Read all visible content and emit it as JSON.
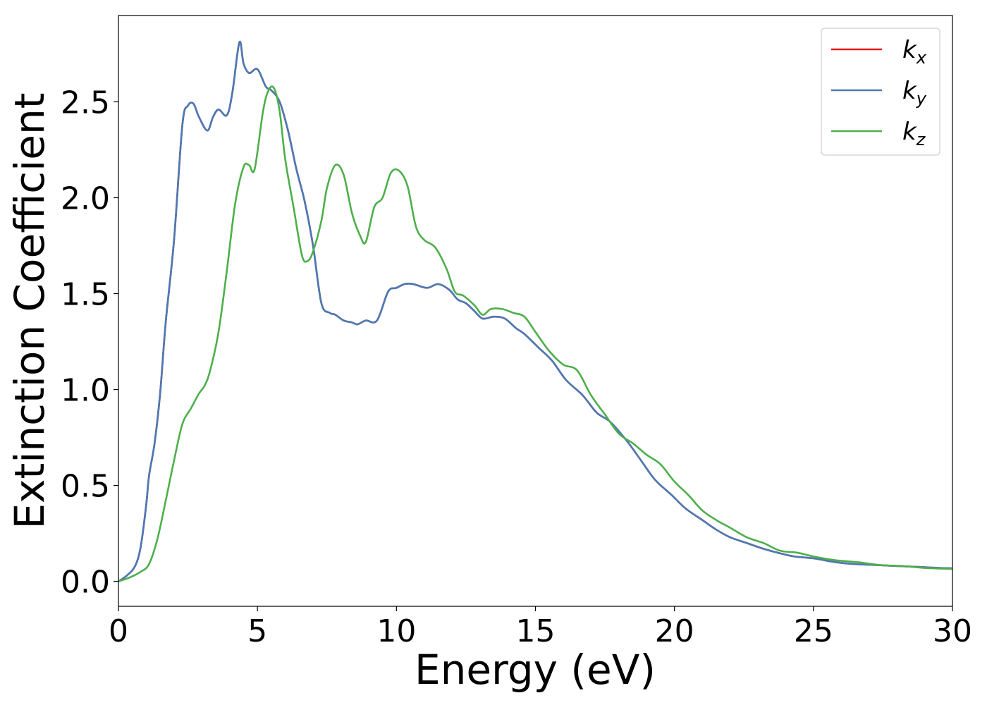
{
  "chart_data": {
    "type": "line",
    "title": "",
    "xlabel": "Energy (eV)",
    "ylabel": "Extinction Coefficient",
    "xlim": [
      0,
      30
    ],
    "ylim": [
      -0.13,
      2.95
    ],
    "xticks": [
      0,
      5,
      10,
      15,
      20,
      25,
      30
    ],
    "xtick_labels": [
      "0",
      "5",
      "10",
      "15",
      "20",
      "25",
      "30"
    ],
    "yticks": [
      0.0,
      0.5,
      1.0,
      1.5,
      2.0,
      2.5
    ],
    "ytick_labels": [
      "0.0",
      "0.5",
      "1.0",
      "1.5",
      "2.0",
      "2.5"
    ],
    "grid": false,
    "legend_position": "top-right",
    "series": [
      {
        "name": "k_x",
        "label_base": "k",
        "label_sub": "x",
        "color": "#e41a1c",
        "x": [
          0,
          0.3,
          0.6,
          0.8,
          1.0,
          1.1,
          1.3,
          1.5,
          1.7,
          2.0,
          2.3,
          2.5,
          2.7,
          2.9,
          3.2,
          3.4,
          3.6,
          3.9,
          4.1,
          4.35,
          4.5,
          4.7,
          5.0,
          5.3,
          5.5,
          5.8,
          6.1,
          6.4,
          6.7,
          7.0,
          7.3,
          7.6,
          7.8,
          8.1,
          8.4,
          8.6,
          8.9,
          9.3,
          9.7,
          10.0,
          10.3,
          10.6,
          11.1,
          11.5,
          11.9,
          12.2,
          12.5,
          12.8,
          13.1,
          13.5,
          13.9,
          14.3,
          14.6,
          15.1,
          15.6,
          16.1,
          16.7,
          17.2,
          17.7,
          18.3,
          18.8,
          19.3,
          19.9,
          20.4,
          21.0,
          21.5,
          22.0,
          22.6,
          23.2,
          23.7,
          24.3,
          25.0,
          25.8,
          26.5,
          27.3,
          28.0,
          28.8,
          29.5,
          30.0
        ],
        "y": [
          0.0,
          0.03,
          0.08,
          0.18,
          0.4,
          0.55,
          0.72,
          0.98,
          1.35,
          1.78,
          2.38,
          2.48,
          2.49,
          2.42,
          2.35,
          2.42,
          2.46,
          2.43,
          2.55,
          2.81,
          2.7,
          2.65,
          2.67,
          2.58,
          2.56,
          2.5,
          2.35,
          2.15,
          1.98,
          1.75,
          1.45,
          1.4,
          1.39,
          1.36,
          1.35,
          1.34,
          1.36,
          1.36,
          1.51,
          1.53,
          1.55,
          1.55,
          1.53,
          1.55,
          1.52,
          1.47,
          1.45,
          1.41,
          1.37,
          1.38,
          1.37,
          1.32,
          1.29,
          1.22,
          1.15,
          1.05,
          0.97,
          0.88,
          0.83,
          0.73,
          0.63,
          0.53,
          0.45,
          0.38,
          0.32,
          0.27,
          0.23,
          0.2,
          0.17,
          0.15,
          0.13,
          0.12,
          0.1,
          0.09,
          0.085,
          0.08,
          0.075,
          0.07,
          0.068
        ]
      },
      {
        "name": "k_y",
        "label_base": "k",
        "label_sub": "y",
        "color": "#4a7ab5",
        "x": [
          0,
          0.3,
          0.6,
          0.8,
          1.0,
          1.1,
          1.3,
          1.5,
          1.7,
          2.0,
          2.3,
          2.5,
          2.7,
          2.9,
          3.2,
          3.4,
          3.6,
          3.9,
          4.1,
          4.35,
          4.5,
          4.7,
          5.0,
          5.3,
          5.5,
          5.8,
          6.1,
          6.4,
          6.7,
          7.0,
          7.3,
          7.6,
          7.8,
          8.1,
          8.4,
          8.6,
          8.9,
          9.3,
          9.7,
          10.0,
          10.3,
          10.6,
          11.1,
          11.5,
          11.9,
          12.2,
          12.5,
          12.8,
          13.1,
          13.5,
          13.9,
          14.3,
          14.6,
          15.1,
          15.6,
          16.1,
          16.7,
          17.2,
          17.7,
          18.3,
          18.8,
          19.3,
          19.9,
          20.4,
          21.0,
          21.5,
          22.0,
          22.6,
          23.2,
          23.7,
          24.3,
          25.0,
          25.8,
          26.5,
          27.3,
          28.0,
          28.8,
          29.5,
          30.0
        ],
        "y": [
          0.0,
          0.03,
          0.08,
          0.18,
          0.4,
          0.55,
          0.72,
          0.98,
          1.35,
          1.78,
          2.38,
          2.48,
          2.49,
          2.42,
          2.35,
          2.42,
          2.46,
          2.43,
          2.55,
          2.81,
          2.7,
          2.65,
          2.67,
          2.58,
          2.56,
          2.5,
          2.35,
          2.15,
          1.98,
          1.75,
          1.45,
          1.4,
          1.39,
          1.36,
          1.35,
          1.34,
          1.36,
          1.36,
          1.51,
          1.53,
          1.55,
          1.55,
          1.53,
          1.55,
          1.52,
          1.47,
          1.45,
          1.41,
          1.37,
          1.38,
          1.37,
          1.32,
          1.29,
          1.22,
          1.15,
          1.05,
          0.97,
          0.88,
          0.83,
          0.73,
          0.63,
          0.53,
          0.45,
          0.38,
          0.32,
          0.27,
          0.23,
          0.2,
          0.17,
          0.15,
          0.13,
          0.12,
          0.1,
          0.09,
          0.085,
          0.08,
          0.075,
          0.07,
          0.068
        ]
      },
      {
        "name": "k_z",
        "label_base": "k",
        "label_sub": "z",
        "color": "#4daf4a",
        "x": [
          0,
          0.4,
          0.8,
          1.1,
          1.4,
          1.7,
          2.0,
          2.3,
          2.6,
          2.9,
          3.1,
          3.3,
          3.6,
          3.9,
          4.2,
          4.5,
          4.7,
          4.9,
          5.2,
          5.4,
          5.6,
          5.8,
          6.0,
          6.3,
          6.6,
          6.8,
          7.0,
          7.3,
          7.5,
          7.8,
          8.1,
          8.4,
          8.7,
          8.9,
          9.2,
          9.5,
          9.8,
          10.1,
          10.4,
          10.7,
          11.0,
          11.4,
          11.8,
          12.1,
          12.4,
          12.8,
          13.1,
          13.4,
          13.8,
          14.2,
          14.6,
          15.0,
          15.5,
          16.0,
          16.5,
          17.0,
          17.5,
          18.0,
          18.5,
          19.0,
          19.5,
          20.0,
          20.5,
          21.0,
          21.5,
          22.0,
          22.6,
          23.2,
          23.8,
          24.4,
          25.0,
          25.8,
          26.6,
          27.4,
          28.2,
          29.0,
          30.0
        ],
        "y": [
          0.0,
          0.02,
          0.05,
          0.09,
          0.22,
          0.42,
          0.63,
          0.82,
          0.9,
          0.98,
          1.02,
          1.1,
          1.3,
          1.62,
          1.97,
          2.16,
          2.17,
          2.15,
          2.45,
          2.56,
          2.57,
          2.45,
          2.2,
          1.95,
          1.7,
          1.67,
          1.72,
          1.88,
          2.05,
          2.17,
          2.12,
          1.92,
          1.8,
          1.77,
          1.95,
          2.0,
          2.13,
          2.14,
          2.06,
          1.85,
          1.78,
          1.74,
          1.63,
          1.51,
          1.49,
          1.44,
          1.39,
          1.42,
          1.42,
          1.4,
          1.38,
          1.3,
          1.2,
          1.13,
          1.1,
          0.97,
          0.87,
          0.77,
          0.72,
          0.66,
          0.61,
          0.52,
          0.45,
          0.37,
          0.32,
          0.28,
          0.23,
          0.2,
          0.16,
          0.15,
          0.13,
          0.11,
          0.1,
          0.085,
          0.08,
          0.07,
          0.065
        ]
      }
    ]
  }
}
